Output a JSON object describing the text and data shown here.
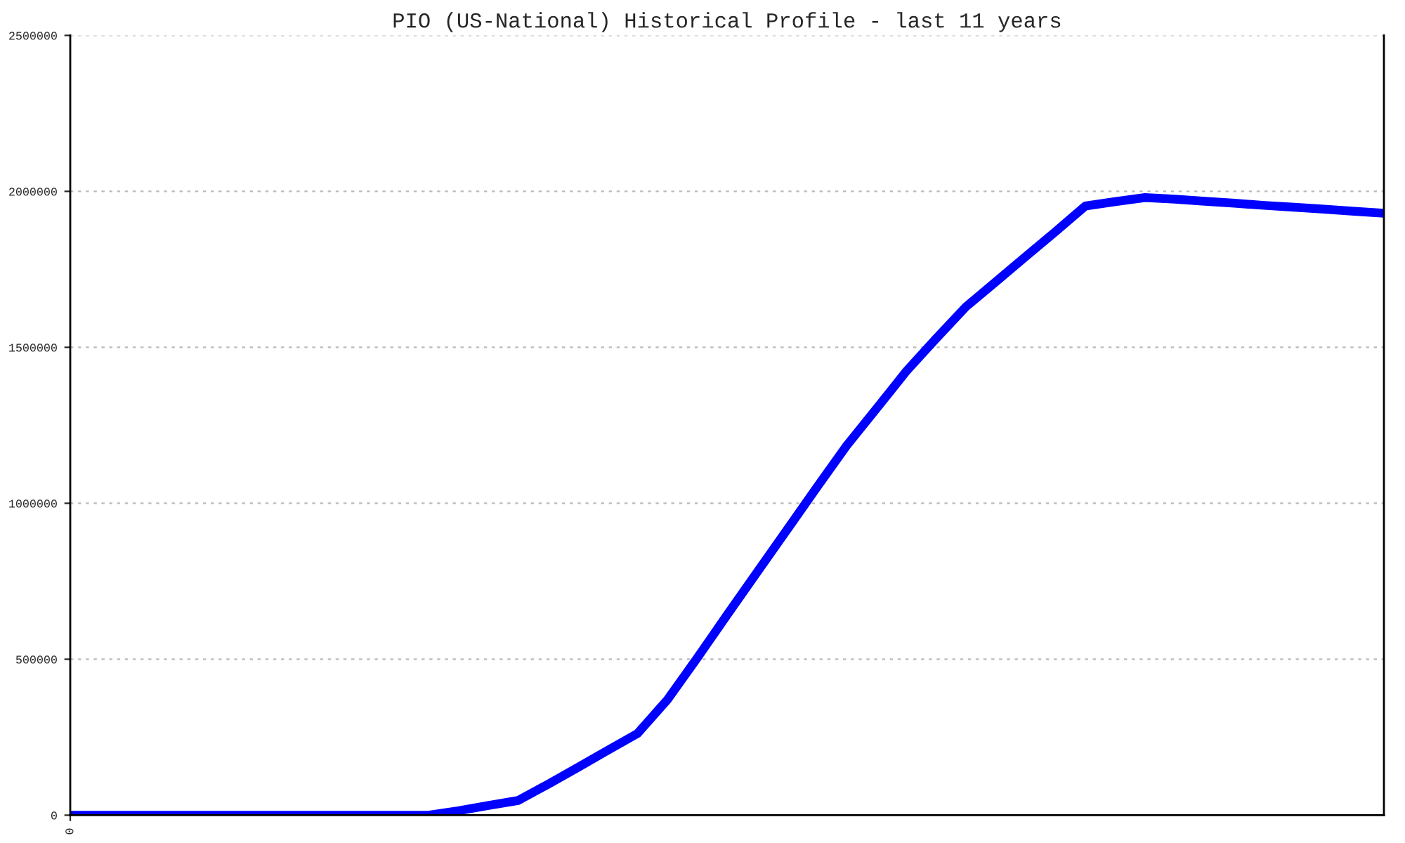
{
  "chart_data": {
    "type": "line",
    "title": "PIO (US-National) Historical Profile - last 11 years",
    "categories": [
      "0",
      null,
      null,
      null,
      null,
      null,
      null,
      null,
      null,
      null,
      null,
      null,
      null,
      null,
      null,
      null,
      null,
      null,
      null,
      null,
      null,
      null,
      null,
      null,
      null,
      null,
      null,
      null,
      null,
      null,
      null,
      null,
      null,
      null,
      null,
      null,
      null,
      null,
      null,
      null,
      null,
      null,
      null,
      null,
      null
    ],
    "series": [
      {
        "color": "#0000ff",
        "values": [
          0,
          0,
          0,
          0,
          0,
          0,
          0,
          0,
          0,
          0,
          0,
          0,
          0,
          14000,
          31000,
          47000,
          99000,
          153000,
          208000,
          262000,
          370000,
          504000,
          642000,
          778000,
          914000,
          1050000,
          1184000,
          1303000,
          1423000,
          1528000,
          1630000,
          1710000,
          1791000,
          1871000,
          1953000,
          1967000,
          1980000,
          1975000,
          1968000,
          1962000,
          1955000,
          1949000,
          1943000,
          1936000,
          1930000
        ]
      }
    ],
    "ylim": [
      0,
      2500000
    ],
    "yticks": [
      0,
      500000,
      1000000,
      1500000,
      2000000,
      2500000
    ],
    "grid": "y",
    "legend": false,
    "marker": "none",
    "line_style": "solid"
  }
}
